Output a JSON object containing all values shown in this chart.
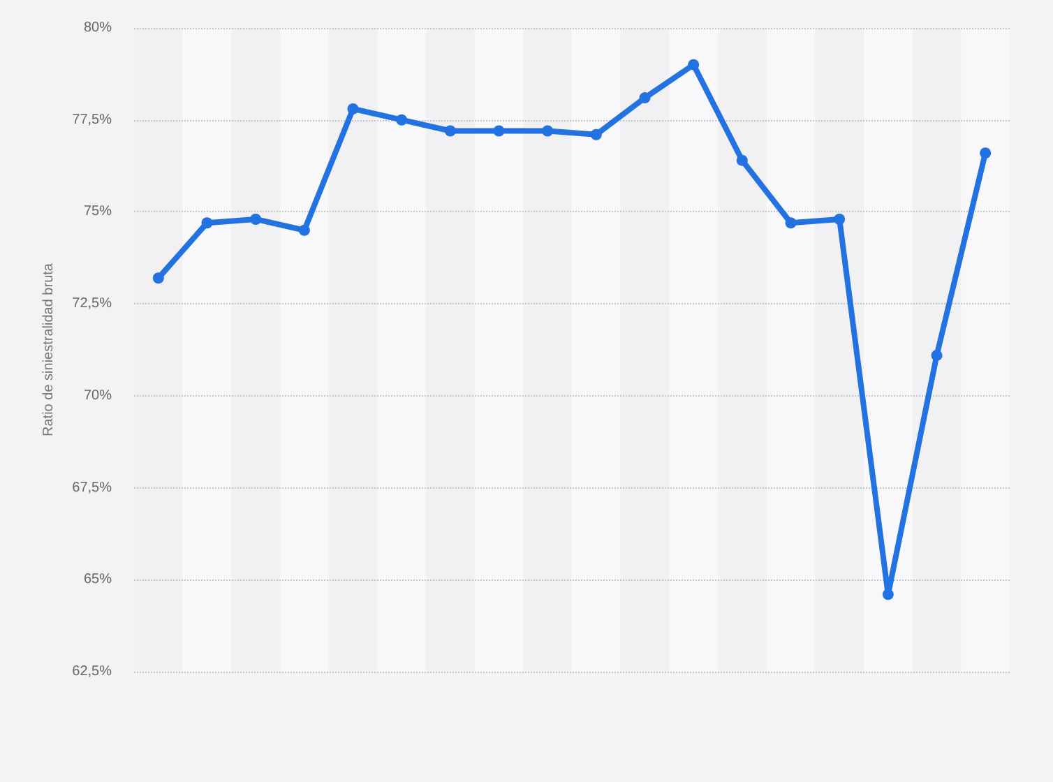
{
  "chart_data": {
    "type": "line",
    "ylabel": "Ratio de siniestralidad bruta",
    "categories": [
      null,
      null,
      null,
      null,
      null,
      null,
      null,
      null,
      null,
      null,
      null,
      null,
      null,
      null,
      null,
      null,
      null,
      null
    ],
    "series": [
      {
        "color": "#2272e2",
        "values": [
          73.2,
          74.7,
          74.8,
          74.5,
          77.8,
          77.5,
          77.2,
          77.2,
          77.2,
          77.1,
          78.1,
          79.0,
          76.4,
          74.7,
          74.8,
          64.6,
          71.1,
          76.6
        ]
      }
    ],
    "ylim": [
      62.5,
      80
    ],
    "yticks": [
      {
        "value": 62.5,
        "label": "62,5%"
      },
      {
        "value": 65,
        "label": "65%"
      },
      {
        "value": 67.5,
        "label": "67,5%"
      },
      {
        "value": 70,
        "label": "70%"
      },
      {
        "value": 72.5,
        "label": "72,5%"
      },
      {
        "value": 75,
        "label": "75%"
      },
      {
        "value": 77.5,
        "label": "77,5%"
      },
      {
        "value": 80,
        "label": "80%"
      }
    ],
    "tick_labels": "y",
    "grid": "y",
    "marker": "circle",
    "line_style": "solid"
  }
}
